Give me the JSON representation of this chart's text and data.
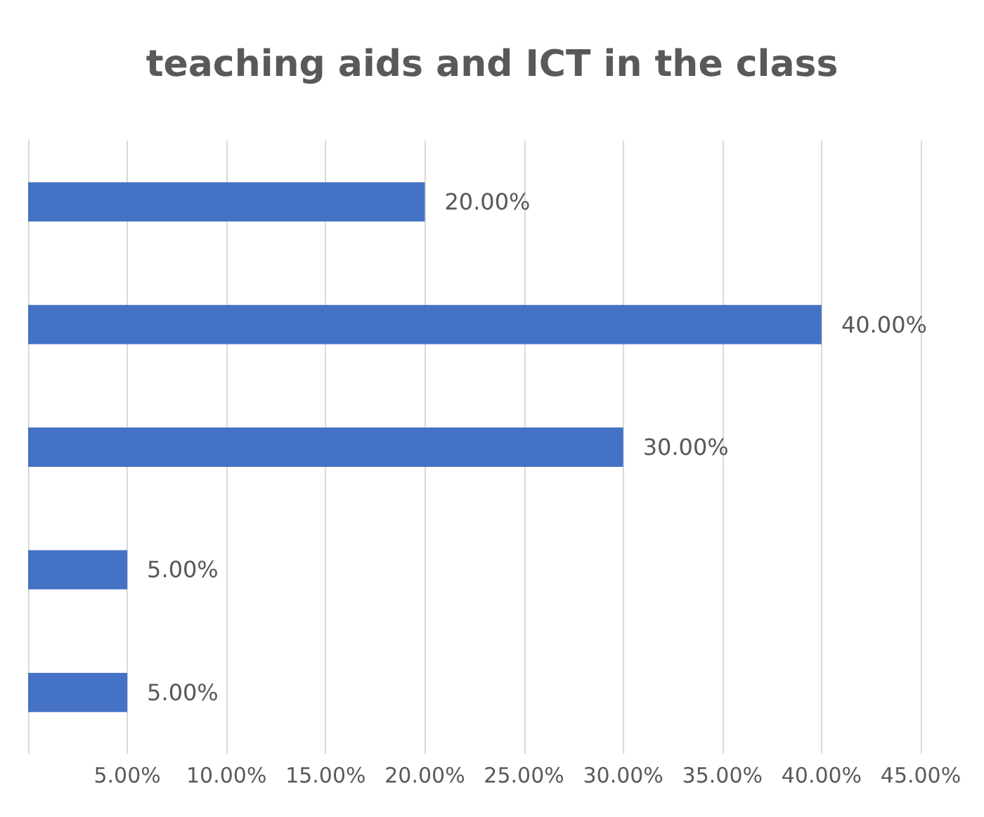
{
  "chart_data": {
    "type": "bar",
    "orientation": "horizontal",
    "title": "teaching aids and ICT in the class",
    "categories": [
      null,
      null,
      null,
      null,
      null
    ],
    "values": [
      20,
      40,
      30,
      5,
      5
    ],
    "value_labels": [
      "20.00%",
      "40.00%",
      "30.00%",
      "5.00%",
      "5.00%"
    ],
    "color": "#4472c4",
    "xlim": [
      0,
      45
    ],
    "xticks": [
      {
        "value": 0,
        "label": null
      },
      {
        "value": 5,
        "label": "5.00%"
      },
      {
        "value": 10,
        "label": "10.00%"
      },
      {
        "value": 15,
        "label": "15.00%"
      },
      {
        "value": 20,
        "label": "20.00%"
      },
      {
        "value": 25,
        "label": "25.00%"
      },
      {
        "value": 30,
        "label": "30.00%"
      },
      {
        "value": 35,
        "label": "35.00%"
      },
      {
        "value": 40,
        "label": "40.00%"
      },
      {
        "value": 45,
        "label": "45.00%"
      }
    ],
    "grid": "x"
  }
}
